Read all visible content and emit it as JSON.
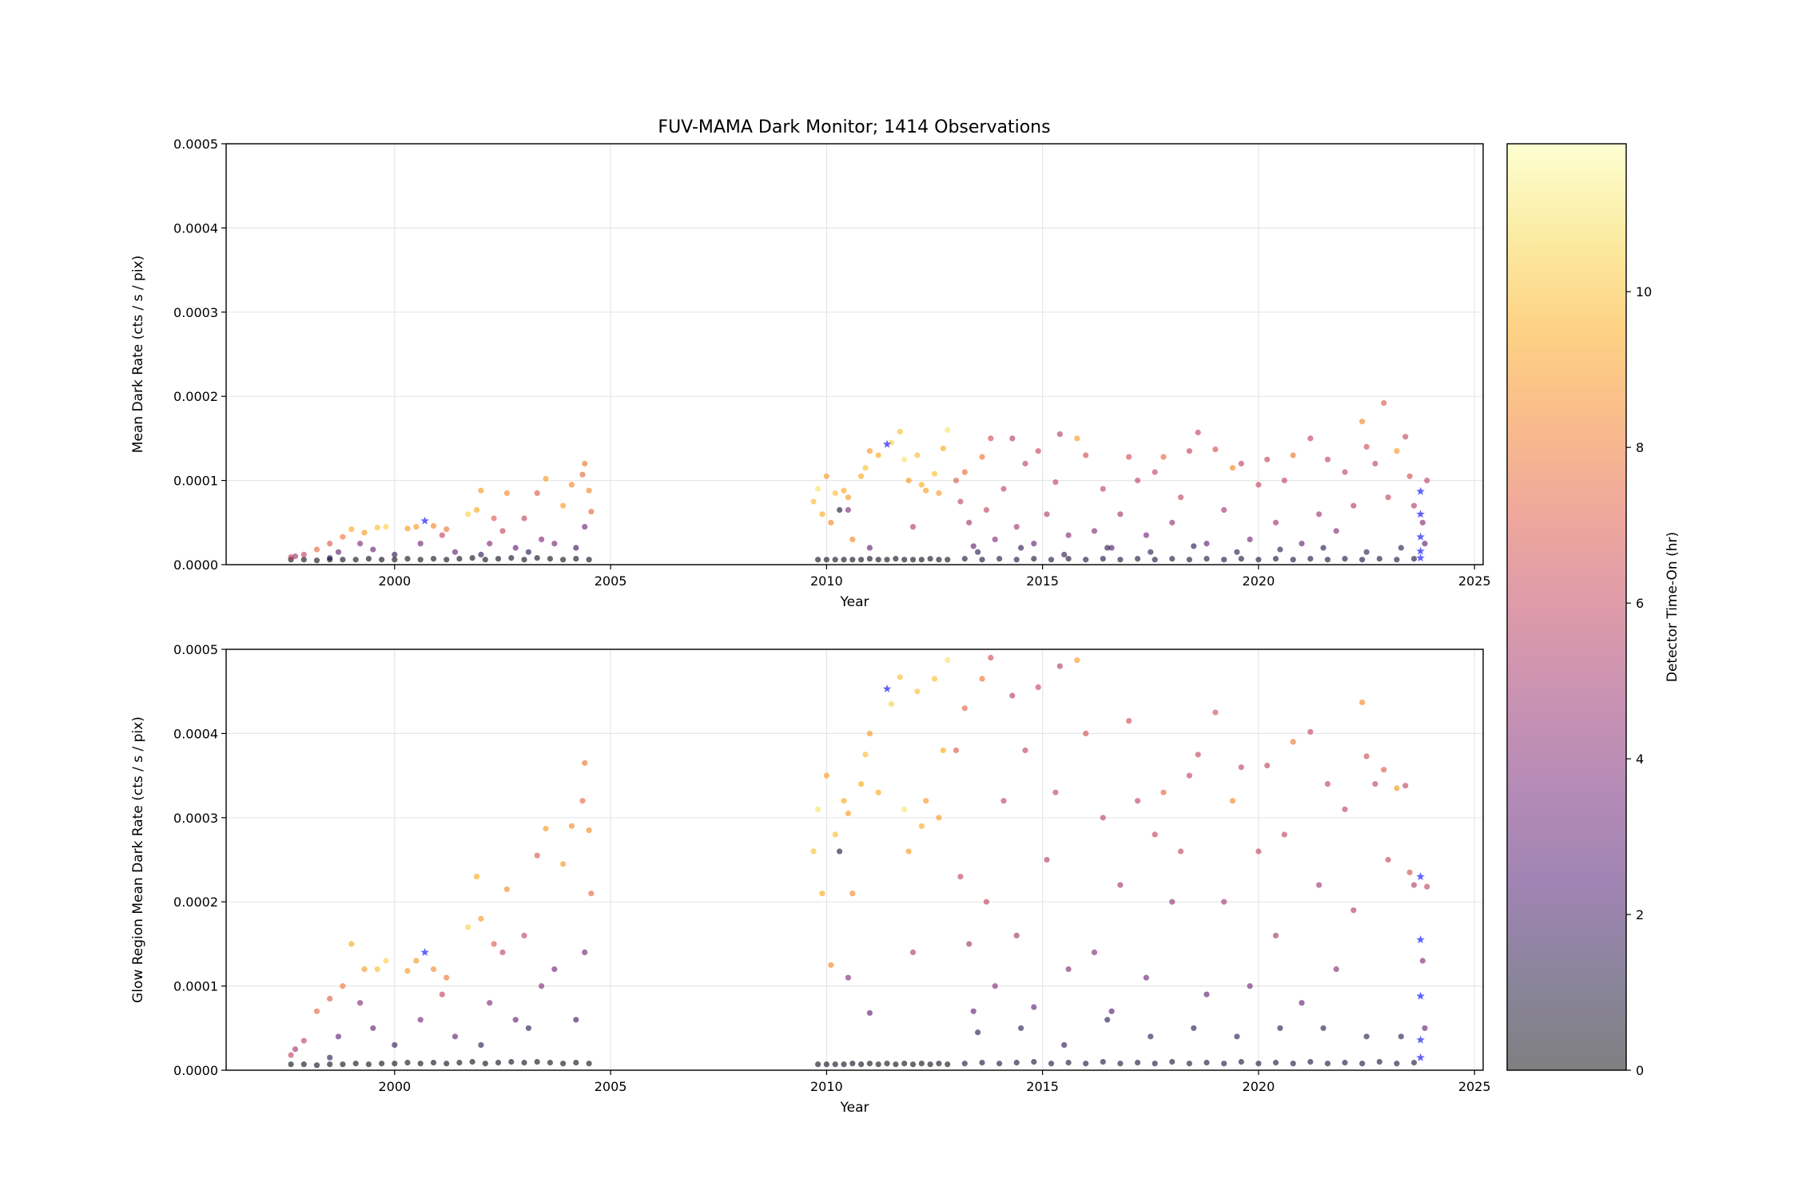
{
  "chart_data": {
    "type": "scatter",
    "title": "FUV-MAMA Dark Monitor; 1414 Observations",
    "xlim": [
      1996.1,
      2025.2
    ],
    "xticks": [
      2000,
      2005,
      2010,
      2015,
      2020,
      2025
    ],
    "ylim": [
      0,
      0.0005
    ],
    "yticks": [
      "0.0000",
      "0.0001",
      "0.0002",
      "0.0003",
      "0.0004",
      "0.0005"
    ],
    "grid": true,
    "panels": [
      {
        "xlabel": "Year",
        "ylabel": "Mean Dark Rate (cts / s / pix)",
        "field": "mean"
      },
      {
        "xlabel": "Year",
        "ylabel": "Glow Region Mean Dark Rate (cts / s / pix)",
        "field": "glow"
      }
    ],
    "colorbar": {
      "label": "Detector Time-On (hr)",
      "colormap": "inferno",
      "alpha": 0.5,
      "range": [
        0,
        11.9
      ],
      "ticks": [
        "0",
        "2",
        "4",
        "6",
        "8",
        "10"
      ]
    },
    "observation_columns": [
      "year",
      "mean",
      "glow",
      "hours"
    ],
    "observations": [
      [
        1997.6,
        6e-06,
        7e-06,
        0.3
      ],
      [
        1997.9,
        6e-06,
        7e-06,
        0.3
      ],
      [
        1998.2,
        5e-06,
        6e-06,
        0.3
      ],
      [
        1998.5,
        6e-06,
        7e-06,
        0.3
      ],
      [
        1998.8,
        6e-06,
        7e-06,
        0.3
      ],
      [
        1999.1,
        6e-06,
        8e-06,
        0.3
      ],
      [
        1999.4,
        7e-06,
        7e-06,
        0.3
      ],
      [
        1999.7,
        6e-06,
        8e-06,
        0.3
      ],
      [
        2000.0,
        6e-06,
        8e-06,
        0.3
      ],
      [
        2000.3,
        7e-06,
        9e-06,
        0.3
      ],
      [
        2000.6,
        6e-06,
        8e-06,
        0.3
      ],
      [
        2000.9,
        7e-06,
        9e-06,
        0.3
      ],
      [
        2001.2,
        6e-06,
        8e-06,
        0.3
      ],
      [
        2001.5,
        7e-06,
        9e-06,
        0.3
      ],
      [
        2001.8,
        8e-06,
        1e-05,
        0.3
      ],
      [
        2002.1,
        6e-06,
        8e-06,
        0.3
      ],
      [
        2002.4,
        7e-06,
        9e-06,
        0.3
      ],
      [
        2002.7,
        8e-06,
        1e-05,
        0.3
      ],
      [
        2003.0,
        6e-06,
        9e-06,
        0.3
      ],
      [
        2003.3,
        8e-06,
        1e-05,
        0.3
      ],
      [
        2003.6,
        7e-06,
        9e-06,
        0.3
      ],
      [
        2003.9,
        6e-06,
        8e-06,
        0.3
      ],
      [
        2004.2,
        7e-06,
        9e-06,
        0.3
      ],
      [
        2004.5,
        6e-06,
        8e-06,
        0.3
      ],
      [
        1997.6,
        9e-06,
        1.8e-05,
        6
      ],
      [
        1997.7,
        1e-05,
        2.5e-05,
        5
      ],
      [
        1997.9,
        1.2e-05,
        3.5e-05,
        6
      ],
      [
        1998.2,
        1.8e-05,
        7e-05,
        7.5
      ],
      [
        1998.5,
        2.5e-05,
        8.5e-05,
        7
      ],
      [
        1998.8,
        3.3e-05,
        0.0001,
        8
      ],
      [
        1999.0,
        4.2e-05,
        0.00015,
        9.5
      ],
      [
        1999.3,
        3.8e-05,
        0.00012,
        9
      ],
      [
        1999.6,
        4.4e-05,
        0.00012,
        10
      ],
      [
        1999.8,
        4.5e-05,
        0.00013,
        10.5
      ],
      [
        1999.2,
        2.5e-05,
        8e-05,
        4
      ],
      [
        1998.7,
        1.5e-05,
        4e-05,
        3
      ],
      [
        1999.5,
        1.8e-05,
        5e-05,
        3
      ],
      [
        2000.3,
        4.3e-05,
        0.000118,
        9
      ],
      [
        2000.5,
        4.5e-05,
        0.00013,
        9
      ],
      [
        2000.9,
        4.6e-05,
        0.00012,
        8.5
      ],
      [
        2001.2,
        4.2e-05,
        0.00011,
        8
      ],
      [
        2001.1,
        3.5e-05,
        9e-05,
        6
      ],
      [
        2000.6,
        2.5e-05,
        6e-05,
        3.5
      ],
      [
        2001.4,
        1.5e-05,
        4e-05,
        3
      ],
      [
        2001.7,
        6e-05,
        0.00017,
        10.5
      ],
      [
        2001.9,
        6.5e-05,
        0.00023,
        9.5
      ],
      [
        2002.0,
        8.8e-05,
        0.00018,
        9
      ],
      [
        2002.3,
        5.5e-05,
        0.00015,
        7
      ],
      [
        2002.6,
        8.5e-05,
        0.000215,
        8.5
      ],
      [
        2002.5,
        4e-05,
        0.00014,
        6
      ],
      [
        2002.2,
        2.5e-05,
        8e-05,
        4
      ],
      [
        2002.8,
        2e-05,
        6e-05,
        3
      ],
      [
        2003.0,
        5.5e-05,
        0.00016,
        6
      ],
      [
        2003.3,
        8.5e-05,
        0.000255,
        7
      ],
      [
        2003.5,
        0.000102,
        0.000287,
        9
      ],
      [
        2003.4,
        3e-05,
        0.0001,
        4
      ],
      [
        2003.7,
        2.5e-05,
        0.00012,
        3.5
      ],
      [
        2003.9,
        7e-05,
        0.000245,
        9
      ],
      [
        2004.1,
        9.5e-05,
        0.00029,
        8.5
      ],
      [
        2004.4,
        0.00012,
        0.000365,
        8
      ],
      [
        2004.35,
        0.000107,
        0.00032,
        7.5
      ],
      [
        2004.5,
        8.8e-05,
        0.000285,
        8.5
      ],
      [
        2004.55,
        6.3e-05,
        0.00021,
        7.5
      ],
      [
        2004.4,
        4.5e-05,
        0.00014,
        3.5
      ],
      [
        2004.2,
        2e-05,
        6e-05,
        2
      ],
      [
        2003.1,
        1.5e-05,
        5e-05,
        1.5
      ],
      [
        2002.0,
        1.2e-05,
        3e-05,
        1.5
      ],
      [
        2000.0,
        1.2e-05,
        3e-05,
        1.5
      ],
      [
        1998.5,
        8e-06,
        1.5e-05,
        1.5
      ],
      [
        2009.8,
        6e-06,
        7e-06,
        0.3
      ],
      [
        2010.0,
        6e-06,
        7e-06,
        0.3
      ],
      [
        2010.2,
        6e-06,
        7e-06,
        0.3
      ],
      [
        2010.4,
        6e-06,
        7e-06,
        0.3
      ],
      [
        2010.6,
        6e-06,
        8e-06,
        0.3
      ],
      [
        2010.8,
        6e-06,
        7e-06,
        0.3
      ],
      [
        2011.0,
        7e-06,
        8e-06,
        0.3
      ],
      [
        2011.2,
        6e-06,
        7e-06,
        0.3
      ],
      [
        2011.4,
        6e-06,
        8e-06,
        0.3
      ],
      [
        2011.6,
        7e-06,
        7e-06,
        0.3
      ],
      [
        2011.8,
        6e-06,
        8e-06,
        0.3
      ],
      [
        2012.0,
        6e-06,
        7e-06,
        0.3
      ],
      [
        2012.2,
        6e-06,
        8e-06,
        0.3
      ],
      [
        2012.4,
        7e-06,
        7e-06,
        0.3
      ],
      [
        2012.6,
        6e-06,
        8e-06,
        0.3
      ],
      [
        2012.8,
        6e-06,
        7e-06,
        0.3
      ],
      [
        2013.2,
        7e-06,
        8e-06,
        1
      ],
      [
        2013.6,
        6e-06,
        9e-06,
        1
      ],
      [
        2014.0,
        7e-06,
        8e-06,
        1
      ],
      [
        2014.4,
        6e-06,
        9e-06,
        1
      ],
      [
        2014.8,
        7e-06,
        1e-05,
        1
      ],
      [
        2015.2,
        6e-06,
        8e-06,
        1
      ],
      [
        2015.6,
        7e-06,
        9e-06,
        1
      ],
      [
        2016.0,
        6e-06,
        8e-06,
        1
      ],
      [
        2016.4,
        7e-06,
        1e-05,
        1
      ],
      [
        2016.8,
        6e-06,
        8e-06,
        1
      ],
      [
        2017.2,
        7e-06,
        9e-06,
        1
      ],
      [
        2017.6,
        6e-06,
        8e-06,
        1
      ],
      [
        2018.0,
        7e-06,
        1e-05,
        1
      ],
      [
        2018.4,
        6e-06,
        8e-06,
        1
      ],
      [
        2018.8,
        7e-06,
        9e-06,
        1
      ],
      [
        2019.2,
        6e-06,
        8e-06,
        1
      ],
      [
        2019.6,
        7e-06,
        1e-05,
        1
      ],
      [
        2020.0,
        6e-06,
        8e-06,
        1
      ],
      [
        2020.4,
        7e-06,
        9e-06,
        1
      ],
      [
        2020.8,
        6e-06,
        8e-06,
        1
      ],
      [
        2021.2,
        7e-06,
        1e-05,
        1
      ],
      [
        2021.6,
        6e-06,
        8e-06,
        1
      ],
      [
        2022.0,
        7e-06,
        9e-06,
        1
      ],
      [
        2022.4,
        6e-06,
        8e-06,
        1
      ],
      [
        2022.8,
        7e-06,
        1e-05,
        1
      ],
      [
        2023.2,
        6e-06,
        8e-06,
        1
      ],
      [
        2023.6,
        7e-06,
        9e-06,
        1
      ],
      [
        2009.7,
        7.5e-05,
        0.00026,
        10
      ],
      [
        2009.8,
        9e-05,
        0.00031,
        11
      ],
      [
        2009.9,
        6e-05,
        0.00021,
        9.5
      ],
      [
        2010.0,
        0.000105,
        0.00035,
        9
      ],
      [
        2010.1,
        5e-05,
        0.000125,
        8.5
      ],
      [
        2010.2,
        8.5e-05,
        0.00028,
        10
      ],
      [
        2010.4,
        8.8e-05,
        0.00032,
        9.5
      ],
      [
        2010.5,
        8e-05,
        0.000305,
        9
      ],
      [
        2010.6,
        3e-05,
        0.00021,
        8.5
      ],
      [
        2010.8,
        0.000105,
        0.00034,
        9.5
      ],
      [
        2010.9,
        0.000115,
        0.000375,
        10
      ],
      [
        2011.0,
        0.000135,
        0.0004,
        9
      ],
      [
        2011.2,
        0.00013,
        0.00033,
        9.5
      ],
      [
        2011.5,
        0.000145,
        0.000435,
        10.5
      ],
      [
        2011.7,
        0.000158,
        0.000467,
        10
      ],
      [
        2011.8,
        0.000125,
        0.00031,
        11
      ],
      [
        2011.9,
        0.0001,
        0.00026,
        9
      ],
      [
        2012.1,
        0.00013,
        0.00045,
        10
      ],
      [
        2012.2,
        9.5e-05,
        0.00029,
        9.5
      ],
      [
        2012.3,
        8.8e-05,
        0.00032,
        9
      ],
      [
        2012.5,
        0.000108,
        0.000465,
        10
      ],
      [
        2012.6,
        8.5e-05,
        0.0003,
        9
      ],
      [
        2012.8,
        0.00016,
        0.000487,
        11
      ],
      [
        2012.7,
        0.000138,
        0.00038,
        9.5
      ],
      [
        2010.5,
        6.5e-05,
        0.00011,
        4
      ],
      [
        2010.3,
        6.5e-05,
        0.00026,
        1
      ],
      [
        2011.0,
        2e-05,
        6.8e-05,
        3
      ],
      [
        2012.0,
        4.5e-05,
        0.00014,
        5.5
      ],
      [
        2013.0,
        0.0001,
        0.00038,
        7
      ],
      [
        2013.1,
        7.5e-05,
        0.00023,
        6
      ],
      [
        2013.2,
        0.00011,
        0.00043,
        7.5
      ],
      [
        2013.3,
        5e-05,
        0.00015,
        5
      ],
      [
        2013.4,
        2.2e-05,
        7e-05,
        3
      ],
      [
        2013.6,
        0.000128,
        0.000465,
        8
      ],
      [
        2013.7,
        6.5e-05,
        0.0002,
        6
      ],
      [
        2013.8,
        0.00015,
        0.00049,
        6.5
      ],
      [
        2013.9,
        3e-05,
        0.0001,
        4
      ],
      [
        2014.1,
        9e-05,
        0.00032,
        6
      ],
      [
        2014.3,
        0.00015,
        0.000445,
        5.5
      ],
      [
        2014.4,
        4.5e-05,
        0.00016,
        5
      ],
      [
        2014.6,
        0.00012,
        0.00038,
        6
      ],
      [
        2014.8,
        2.5e-05,
        7.5e-05,
        3
      ],
      [
        2014.9,
        0.000135,
        0.000455,
        6
      ],
      [
        2015.1,
        6e-05,
        0.00025,
        5.5
      ],
      [
        2015.3,
        9.8e-05,
        0.00033,
        6
      ],
      [
        2015.4,
        0.000155,
        0.00048,
        5.5
      ],
      [
        2015.6,
        3.5e-05,
        0.00012,
        4
      ],
      [
        2015.8,
        0.00015,
        0.000487,
        9
      ],
      [
        2016.0,
        0.00013,
        0.0004,
        6.5
      ],
      [
        2016.2,
        4e-05,
        0.00014,
        4
      ],
      [
        2016.4,
        9e-05,
        0.0003,
        6
      ],
      [
        2016.6,
        2e-05,
        7e-05,
        2.5
      ],
      [
        2016.8,
        6e-05,
        0.00022,
        5
      ],
      [
        2017.0,
        0.000128,
        0.000415,
        6.5
      ],
      [
        2017.2,
        0.0001,
        0.00032,
        6
      ],
      [
        2017.4,
        3.5e-05,
        0.00011,
        3.5
      ],
      [
        2017.6,
        0.00011,
        0.00028,
        6
      ],
      [
        2017.8,
        0.000128,
        0.00033,
        7.5
      ],
      [
        2018.0,
        5e-05,
        0.0002,
        4.5
      ],
      [
        2018.2,
        8e-05,
        0.00026,
        6
      ],
      [
        2018.4,
        0.000135,
        0.00035,
        6
      ],
      [
        2018.6,
        0.000157,
        0.000375,
        6
      ],
      [
        2018.8,
        2.5e-05,
        9e-05,
        3
      ],
      [
        2019.0,
        0.000137,
        0.000425,
        6.5
      ],
      [
        2019.2,
        6.5e-05,
        0.0002,
        5
      ],
      [
        2019.4,
        0.000115,
        0.00032,
        8.5
      ],
      [
        2019.6,
        0.00012,
        0.00036,
        6
      ],
      [
        2019.8,
        3e-05,
        0.0001,
        3.5
      ],
      [
        2020.0,
        9.5e-05,
        0.00026,
        6
      ],
      [
        2020.2,
        0.000125,
        0.000362,
        6
      ],
      [
        2020.4,
        5e-05,
        0.00016,
        5
      ],
      [
        2020.6,
        0.0001,
        0.00028,
        6
      ],
      [
        2020.8,
        0.00013,
        0.00039,
        8
      ],
      [
        2021.0,
        2.5e-05,
        8e-05,
        3
      ],
      [
        2021.2,
        0.00015,
        0.000402,
        6
      ],
      [
        2021.4,
        6e-05,
        0.00022,
        5
      ],
      [
        2021.6,
        0.000125,
        0.00034,
        6
      ],
      [
        2021.8,
        4e-05,
        0.00012,
        4
      ],
      [
        2022.0,
        0.00011,
        0.00031,
        6
      ],
      [
        2022.2,
        7e-05,
        0.00019,
        5.5
      ],
      [
        2022.4,
        0.00017,
        0.000437,
        8.5
      ],
      [
        2022.5,
        0.00014,
        0.000373,
        6.5
      ],
      [
        2022.7,
        0.00012,
        0.00034,
        6
      ],
      [
        2022.9,
        0.000192,
        0.000357,
        7
      ],
      [
        2023.0,
        8e-05,
        0.00025,
        6
      ],
      [
        2023.2,
        0.000135,
        0.000335,
        9
      ],
      [
        2023.4,
        0.000152,
        0.000338,
        6
      ],
      [
        2023.5,
        0.000105,
        0.000235,
        6.5
      ],
      [
        2023.6,
        7e-05,
        0.00022,
        5.5
      ],
      [
        2023.8,
        5e-05,
        0.00013,
        4
      ],
      [
        2023.9,
        0.0001,
        0.000218,
        6
      ],
      [
        2023.85,
        2.5e-05,
        5e-05,
        3
      ],
      [
        2013.5,
        1.5e-05,
        4.5e-05,
        1.5
      ],
      [
        2014.5,
        2e-05,
        5e-05,
        1.5
      ],
      [
        2015.5,
        1.2e-05,
        3e-05,
        1.5
      ],
      [
        2016.5,
        2e-05,
        6e-05,
        1.5
      ],
      [
        2017.5,
        1.5e-05,
        4e-05,
        1.5
      ],
      [
        2018.5,
        2.2e-05,
        5e-05,
        1.5
      ],
      [
        2019.5,
        1.5e-05,
        4e-05,
        1.5
      ],
      [
        2020.5,
        1.8e-05,
        5e-05,
        1.5
      ],
      [
        2021.5,
        2e-05,
        5e-05,
        1.5
      ],
      [
        2022.5,
        1.5e-05,
        4e-05,
        1.5
      ],
      [
        2023.3,
        2e-05,
        4e-05,
        1.5
      ]
    ],
    "star_markers": {
      "color": "#3a3aff",
      "points": [
        [
          2000.7,
          5.2e-05,
          0.00014
        ],
        [
          2011.4,
          0.000143,
          0.000453
        ],
        [
          2023.75,
          8.7e-05,
          0.00023
        ],
        [
          2023.75,
          6e-05,
          0.000155
        ],
        [
          2023.75,
          3.3e-05,
          8.8e-05
        ],
        [
          2023.75,
          1.6e-05,
          3.6e-05
        ],
        [
          2023.75,
          8e-06,
          1.5e-05
        ]
      ]
    }
  }
}
